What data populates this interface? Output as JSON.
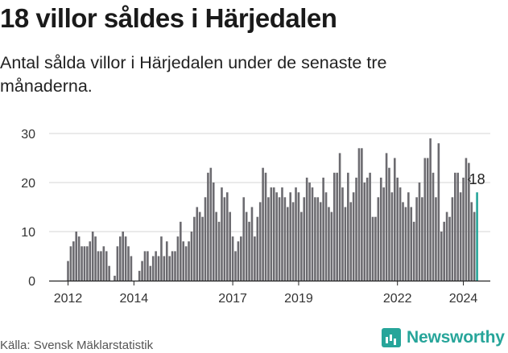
{
  "header": {
    "title": "18 villor såldes i Härjedalen",
    "subtitle": "Antal sålda villor i Härjedalen under de senaste tre månaderna."
  },
  "footer": {
    "source": "Källa: Svensk Mäklarstatistik",
    "brand": "Newsworthy"
  },
  "colors": {
    "bar": "#6c6b70",
    "highlight": "#27a59a",
    "grid": "#d4d4d4",
    "axis": "#222222"
  },
  "chart_data": {
    "type": "bar",
    "title": "18 villor såldes i Härjedalen",
    "subtitle": "Antal sålda villor i Härjedalen under de senaste tre månaderna.",
    "xlabel": "",
    "ylabel": "",
    "ylim": [
      0,
      30
    ],
    "yticks": [
      0,
      10,
      20,
      30
    ],
    "xticks": [
      {
        "label": "2012",
        "index": 0
      },
      {
        "label": "2014",
        "index": 24
      },
      {
        "label": "2017",
        "index": 60
      },
      {
        "label": "2019",
        "index": 84
      },
      {
        "label": "2022",
        "index": 120
      },
      {
        "label": "2024",
        "index": 144
      }
    ],
    "grid": true,
    "start": "2012-01",
    "frequency": "monthly",
    "highlight_last": true,
    "last_value_label": "18",
    "values": [
      4,
      7,
      8,
      10,
      9,
      7,
      7,
      7,
      8,
      10,
      9,
      6,
      6,
      7,
      6,
      3,
      0,
      1,
      7,
      9,
      10,
      9,
      7,
      5,
      0,
      0,
      2,
      4,
      6,
      6,
      3,
      5,
      6,
      5,
      9,
      5,
      8,
      5,
      6,
      6,
      9,
      12,
      8,
      7,
      8,
      10,
      13,
      15,
      14,
      13,
      17,
      22,
      23,
      20,
      14,
      12,
      19,
      17,
      18,
      14,
      9,
      6,
      8,
      9,
      17,
      14,
      12,
      15,
      9,
      13,
      16,
      23,
      22,
      17,
      19,
      19,
      18,
      17,
      19,
      17,
      15,
      18,
      16,
      19,
      18,
      14,
      17,
      21,
      20,
      19,
      17,
      17,
      16,
      21,
      18,
      15,
      14,
      22,
      22,
      26,
      19,
      15,
      22,
      16,
      18,
      21,
      27,
      27,
      20,
      21,
      22,
      13,
      13,
      17,
      21,
      19,
      26,
      23,
      18,
      25,
      21,
      19,
      16,
      15,
      18,
      15,
      12,
      17,
      20,
      17,
      25,
      25,
      29,
      22,
      17,
      28,
      10,
      12,
      14,
      13,
      17,
      22,
      22,
      18,
      21,
      25,
      24,
      16,
      14,
      18
    ]
  }
}
